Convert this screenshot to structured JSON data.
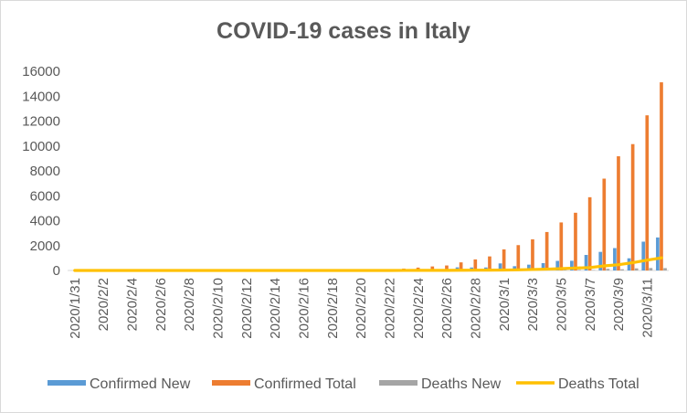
{
  "chart_data": {
    "type": "bar",
    "title": "COVID-19 cases in Italy",
    "xlabel": "",
    "ylabel": "",
    "ylim": [
      0,
      16000
    ],
    "yticks": [
      0,
      2000,
      4000,
      6000,
      8000,
      10000,
      12000,
      14000,
      16000
    ],
    "categories": [
      "2020/1/31",
      "2020/2/1",
      "2020/2/2",
      "2020/2/3",
      "2020/2/4",
      "2020/2/5",
      "2020/2/6",
      "2020/2/7",
      "2020/2/8",
      "2020/2/9",
      "2020/2/10",
      "2020/2/11",
      "2020/2/12",
      "2020/2/13",
      "2020/2/14",
      "2020/2/15",
      "2020/2/16",
      "2020/2/17",
      "2020/2/18",
      "2020/2/19",
      "2020/2/20",
      "2020/2/21",
      "2020/2/22",
      "2020/2/23",
      "2020/2/24",
      "2020/2/25",
      "2020/2/26",
      "2020/2/27",
      "2020/2/28",
      "2020/2/29",
      "2020/3/1",
      "2020/3/2",
      "2020/3/3",
      "2020/3/4",
      "2020/3/5",
      "2020/3/6",
      "2020/3/7",
      "2020/3/8",
      "2020/3/9",
      "2020/3/10",
      "2020/3/11",
      "2020/3/12"
    ],
    "xtick_labels": [
      "2020/1/31",
      "2020/2/2",
      "2020/2/4",
      "2020/2/6",
      "2020/2/8",
      "2020/2/10",
      "2020/2/12",
      "2020/2/14",
      "2020/2/16",
      "2020/2/18",
      "2020/2/20",
      "2020/2/22",
      "2020/2/24",
      "2020/2/26",
      "2020/2/28",
      "2020/3/1",
      "2020/3/3",
      "2020/3/5",
      "2020/3/7",
      "2020/3/9",
      "2020/3/11"
    ],
    "series": [
      {
        "name": "Confirmed New",
        "type": "bar",
        "color": "#5b9bd5",
        "values": [
          2,
          0,
          0,
          0,
          0,
          0,
          1,
          0,
          0,
          0,
          0,
          0,
          0,
          0,
          0,
          0,
          0,
          0,
          0,
          0,
          0,
          17,
          62,
          53,
          97,
          93,
          78,
          250,
          238,
          240,
          566,
          342,
          466,
          587,
          769,
          778,
          1247,
          1492,
          1797,
          977,
          2313,
          2651
        ]
      },
      {
        "name": "Confirmed Total",
        "type": "bar",
        "color": "#ed7d31",
        "values": [
          2,
          2,
          2,
          2,
          2,
          2,
          3,
          3,
          3,
          3,
          3,
          3,
          3,
          3,
          3,
          3,
          3,
          3,
          3,
          3,
          3,
          20,
          79,
          150,
          229,
          322,
          400,
          650,
          888,
          1128,
          1694,
          2036,
          2502,
          3089,
          3858,
          4636,
          5883,
          7375,
          9172,
          10149,
          12462,
          15113
        ]
      },
      {
        "name": "Deaths New",
        "type": "bar",
        "color": "#a5a5a5",
        "values": [
          0,
          0,
          0,
          0,
          0,
          0,
          0,
          0,
          0,
          0,
          0,
          0,
          0,
          0,
          0,
          0,
          0,
          0,
          0,
          0,
          0,
          1,
          1,
          1,
          4,
          3,
          2,
          5,
          4,
          8,
          5,
          18,
          27,
          28,
          41,
          49,
          36,
          133,
          97,
          168,
          196,
          189
        ]
      },
      {
        "name": "Deaths Total",
        "type": "line",
        "color": "#ffc000",
        "values": [
          0,
          0,
          0,
          0,
          0,
          0,
          0,
          0,
          0,
          0,
          0,
          0,
          0,
          0,
          0,
          0,
          0,
          0,
          0,
          0,
          0,
          1,
          2,
          3,
          7,
          10,
          12,
          17,
          21,
          29,
          34,
          52,
          79,
          107,
          148,
          197,
          233,
          366,
          463,
          631,
          827,
          1016
        ]
      }
    ],
    "legend_position": "bottom",
    "grid": false
  }
}
